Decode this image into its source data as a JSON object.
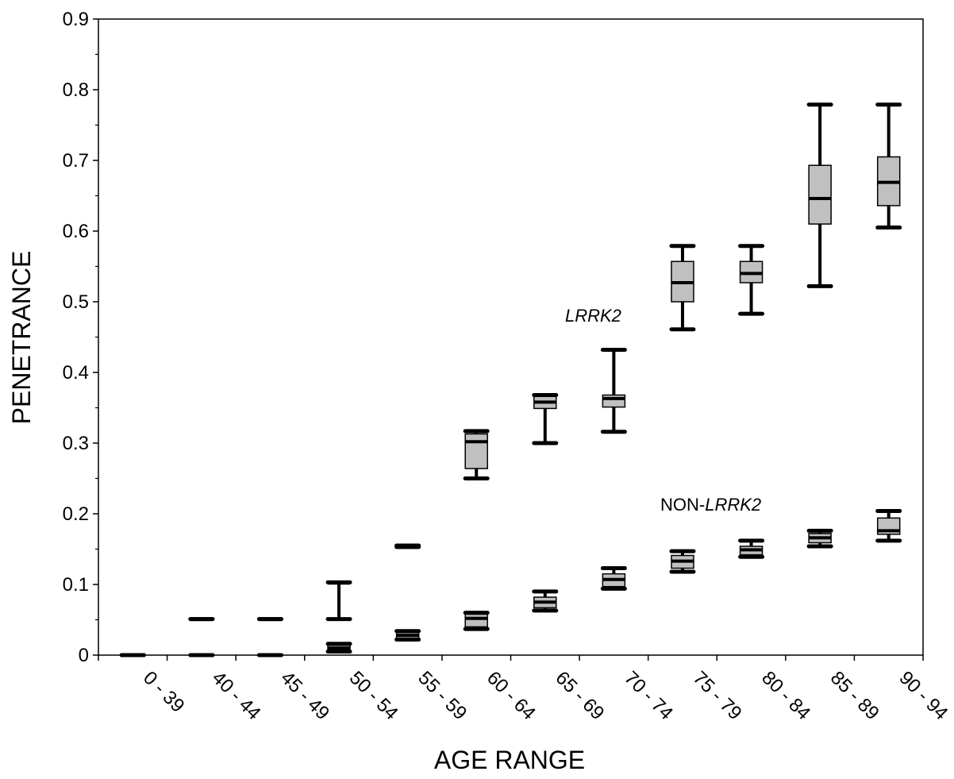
{
  "chart_data": {
    "type": "box",
    "xlabel": "AGE RANGE",
    "ylabel": "PENETRANCE",
    "ylim": [
      0,
      0.9
    ],
    "y_ticks": [
      "0",
      "0.1",
      "0.2",
      "0.3",
      "0.4",
      "0.5",
      "0.6",
      "0.7",
      "0.8",
      "0.9"
    ],
    "categories": [
      "0 - 39",
      "40 - 44",
      "45 - 49",
      "50 - 54",
      "55 - 59",
      "60 - 64",
      "65 - 69",
      "70 - 74",
      "75 - 79",
      "80 - 84",
      "85 - 89",
      "90 - 94"
    ],
    "grid": false,
    "series": [
      {
        "name": "LRRK2",
        "label_style": "italic",
        "boxes": [
          {
            "min": 0,
            "q1": 0,
            "median": 0,
            "q3": 0,
            "max": 0
          },
          {
            "min": 0.051,
            "q1": 0.051,
            "median": 0.051,
            "q3": 0.051,
            "max": 0.051
          },
          {
            "min": 0.051,
            "q1": 0.051,
            "median": 0.051,
            "q3": 0.051,
            "max": 0.051
          },
          {
            "min": 0.051,
            "q1": 0.102,
            "median": 0.102,
            "q3": 0.102,
            "max": 0.103
          },
          {
            "min": 0.153,
            "q1": 0.153,
            "median": 0.154,
            "q3": 0.155,
            "max": 0.155
          },
          {
            "min": 0.25,
            "q1": 0.264,
            "median": 0.302,
            "q3": 0.313,
            "max": 0.317
          },
          {
            "min": 0.3,
            "q1": 0.349,
            "median": 0.358,
            "q3": 0.368,
            "max": 0.368
          },
          {
            "min": 0.316,
            "q1": 0.351,
            "median": 0.363,
            "q3": 0.368,
            "max": 0.432
          },
          {
            "min": 0.461,
            "q1": 0.5,
            "median": 0.527,
            "q3": 0.557,
            "max": 0.579
          },
          {
            "min": 0.483,
            "q1": 0.527,
            "median": 0.54,
            "q3": 0.557,
            "max": 0.579
          },
          {
            "min": 0.522,
            "q1": 0.61,
            "median": 0.646,
            "q3": 0.693,
            "max": 0.779
          },
          {
            "min": 0.605,
            "q1": 0.636,
            "median": 0.669,
            "q3": 0.705,
            "max": 0.779
          }
        ]
      },
      {
        "name": "NON-LRRK2",
        "label_prefix": "NON-",
        "label_italic": "LRRK2",
        "boxes": [
          {
            "min": 0,
            "q1": 0,
            "median": 0,
            "q3": 0,
            "max": 0
          },
          {
            "min": 0,
            "q1": 0,
            "median": 0,
            "q3": 0,
            "max": 0
          },
          {
            "min": 0,
            "q1": 0,
            "median": 0,
            "q3": 0,
            "max": 0
          },
          {
            "min": 0.005,
            "q1": 0.006,
            "median": 0.01,
            "q3": 0.014,
            "max": 0.016
          },
          {
            "min": 0.022,
            "q1": 0.023,
            "median": 0.028,
            "q3": 0.032,
            "max": 0.034
          },
          {
            "min": 0.037,
            "q1": 0.04,
            "median": 0.052,
            "q3": 0.058,
            "max": 0.06
          },
          {
            "min": 0.063,
            "q1": 0.067,
            "median": 0.075,
            "q3": 0.082,
            "max": 0.09
          },
          {
            "min": 0.094,
            "q1": 0.097,
            "median": 0.107,
            "q3": 0.115,
            "max": 0.123
          },
          {
            "min": 0.118,
            "q1": 0.123,
            "median": 0.133,
            "q3": 0.141,
            "max": 0.147
          },
          {
            "min": 0.139,
            "q1": 0.142,
            "median": 0.149,
            "q3": 0.154,
            "max": 0.162
          },
          {
            "min": 0.154,
            "q1": 0.159,
            "median": 0.166,
            "q3": 0.172,
            "max": 0.176
          },
          {
            "min": 0.162,
            "q1": 0.171,
            "median": 0.176,
            "q3": 0.194,
            "max": 0.204
          }
        ]
      }
    ],
    "box_fill": "#c0c0c0",
    "line_color": "#000000"
  }
}
